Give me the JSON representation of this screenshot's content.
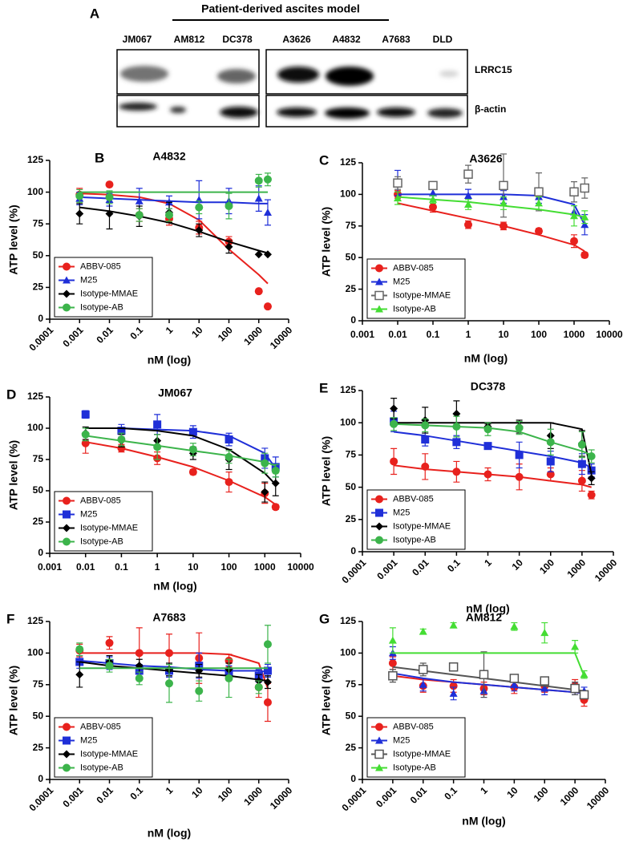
{
  "blot": {
    "panel": "A",
    "header": "Patient-derived ascites model",
    "lanes": [
      "JM067",
      "AM812",
      "DC378",
      "A3626",
      "A4832",
      "A7683",
      "DLD"
    ],
    "rows": [
      "LRRC15",
      "β-actin"
    ]
  },
  "chart_data": [
    {
      "type": "scatter",
      "panel": "B",
      "title": "A4832",
      "xlabel": "nM (log)",
      "ylabel": "ATP level (%)",
      "xscale": "log",
      "legend": "lower left",
      "xlim": [
        0.0001,
        10000
      ],
      "xticks": [
        0.0001,
        0.001,
        0.01,
        0.1,
        1,
        10,
        100,
        1000,
        10000
      ],
      "ylim": [
        0,
        125
      ],
      "yticks": [
        0,
        25,
        50,
        75,
        100,
        125
      ],
      "x": [
        0.001,
        0.01,
        0.1,
        1,
        10,
        100,
        1000,
        2000
      ],
      "series": [
        {
          "name": "ABBV-085",
          "color": "#e8211d",
          "marker": "circle",
          "values": [
            98,
            106,
            82,
            79,
            72,
            61,
            22,
            10
          ],
          "errors": [
            5,
            0,
            5,
            5,
            5,
            4,
            0,
            0
          ],
          "fit": [
            99,
            98,
            96,
            91,
            78,
            55,
            35,
            28
          ]
        },
        {
          "name": "M25",
          "color": "#1f2fd8",
          "marker": "triangle",
          "values": [
            95,
            94,
            93,
            92,
            94,
            93,
            95,
            84
          ],
          "errors": [
            5,
            5,
            10,
            5,
            15,
            10,
            10,
            10
          ],
          "fit": [
            96,
            95,
            94,
            93,
            92,
            92,
            91,
            91
          ]
        },
        {
          "name": "Isotype-MMAE",
          "color": "#000000",
          "marker": "diamond",
          "values": [
            83,
            83,
            81,
            84,
            70,
            57,
            51,
            51
          ],
          "errors": [
            8,
            12,
            8,
            8,
            5,
            5,
            0,
            0
          ],
          "fit": [
            88,
            85,
            81,
            76,
            69,
            61,
            54,
            52
          ]
        },
        {
          "name": "Isotype-AB",
          "color": "#3cb44b",
          "marker": "circle",
          "values": [
            97,
            96,
            82,
            82,
            88,
            89,
            109,
            110
          ],
          "errors": [
            5,
            5,
            5,
            5,
            5,
            10,
            5,
            5
          ],
          "fit": [
            100,
            100,
            100,
            100,
            100,
            100,
            100,
            100
          ]
        }
      ]
    },
    {
      "type": "scatter",
      "panel": "C",
      "title": "A3626",
      "xlabel": "nM (log)",
      "ylabel": "ATP level (%)",
      "xscale": "log",
      "legend": "lower left",
      "xlim": [
        0.001,
        10000
      ],
      "xticks": [
        0.001,
        0.01,
        0.1,
        1,
        10,
        100,
        1000,
        10000
      ],
      "ylim": [
        0,
        125
      ],
      "yticks": [
        0,
        25,
        50,
        75,
        100,
        125
      ],
      "x": [
        0.01,
        0.1,
        1,
        10,
        100,
        1000,
        2000
      ],
      "series": [
        {
          "name": "ABBV-085",
          "color": "#e8211d",
          "marker": "circle",
          "values": [
            100,
            90,
            76,
            75,
            71,
            63,
            52
          ],
          "errors": [
            3,
            4,
            3,
            3,
            2,
            5,
            2
          ],
          "fit": [
            93,
            87,
            81,
            75,
            68,
            60,
            55
          ]
        },
        {
          "name": "M25",
          "color": "#1f2fd8",
          "marker": "triangle",
          "values": [
            109,
            101,
            99,
            98,
            98,
            86,
            76
          ],
          "errors": [
            10,
            5,
            5,
            5,
            5,
            5,
            8
          ],
          "fit": [
            100,
            100,
            100,
            100,
            99,
            92,
            76
          ]
        },
        {
          "name": "Isotype-MMAE",
          "color": "#666666",
          "marker": "square-open",
          "values": [
            109,
            107,
            116,
            107,
            102,
            102,
            105
          ],
          "errors": [
            5,
            3,
            7,
            25,
            15,
            8,
            8
          ]
        },
        {
          "name": "Isotype-AB",
          "color": "#44dd33",
          "marker": "triangle",
          "values": [
            97,
            96,
            92,
            93,
            93,
            83,
            82
          ],
          "errors": [
            5,
            3,
            4,
            5,
            5,
            8,
            5
          ],
          "fit": [
            98,
            96,
            94,
            91,
            88,
            84,
            82
          ]
        }
      ]
    },
    {
      "type": "scatter",
      "panel": "D",
      "title": "JM067",
      "xlabel": "nM (log)",
      "ylabel": "ATP level (%)",
      "xscale": "log",
      "legend": "lower left",
      "xlim": [
        0.001,
        10000
      ],
      "xticks": [
        0.001,
        0.01,
        0.1,
        1,
        10,
        100,
        1000,
        10000
      ],
      "ylim": [
        0,
        125
      ],
      "yticks": [
        0,
        25,
        50,
        75,
        100,
        125
      ],
      "x": [
        0.01,
        0.1,
        1,
        10,
        100,
        1000,
        2000
      ],
      "series": [
        {
          "name": "ABBV-085",
          "color": "#e8211d",
          "marker": "circle",
          "values": [
            88,
            84,
            76,
            65,
            57,
            48,
            37
          ],
          "errors": [
            8,
            3,
            5,
            2,
            8,
            8,
            2
          ],
          "fit": [
            89,
            84,
            77,
            69,
            58,
            45,
            39
          ]
        },
        {
          "name": "M25",
          "color": "#1f2fd8",
          "marker": "square",
          "values": [
            111,
            98,
            103,
            97,
            91,
            76,
            69
          ],
          "errors": [
            3,
            5,
            8,
            5,
            5,
            8,
            8
          ],
          "fit": [
            100,
            100,
            99,
            98,
            94,
            80,
            68
          ]
        },
        {
          "name": "Isotype-MMAE",
          "color": "#000000",
          "marker": "diamond",
          "values": [
            96,
            90,
            90,
            80,
            75,
            49,
            56
          ],
          "errors": [
            5,
            5,
            5,
            5,
            8,
            8,
            10
          ],
          "fit": [
            100,
            100,
            98,
            94,
            83,
            64,
            55
          ]
        },
        {
          "name": "Isotype-AB",
          "color": "#3cb44b",
          "marker": "circle",
          "values": [
            95,
            91,
            85,
            83,
            77,
            72,
            66
          ],
          "errors": [
            5,
            5,
            10,
            5,
            5,
            8,
            5
          ],
          "fit": [
            94,
            90,
            86,
            82,
            78,
            73,
            70
          ]
        }
      ]
    },
    {
      "type": "scatter",
      "panel": "E",
      "title": "DC378",
      "xlabel": "nM (log)",
      "ylabel": "ATP level (%)",
      "xscale": "log",
      "legend": "lower left",
      "xlim": [
        0.0001,
        10000
      ],
      "xticks": [
        0.0001,
        0.001,
        0.01,
        0.1,
        1,
        10,
        100,
        1000,
        10000
      ],
      "ylim": [
        0,
        125
      ],
      "yticks": [
        0,
        25,
        50,
        75,
        100,
        125
      ],
      "x": [
        0.001,
        0.01,
        0.1,
        1,
        10,
        100,
        1000,
        2000
      ],
      "series": [
        {
          "name": "ABBV-085",
          "color": "#e8211d",
          "marker": "circle",
          "values": [
            70,
            66,
            62,
            60,
            58,
            60,
            55,
            44
          ],
          "errors": [
            10,
            10,
            8,
            5,
            10,
            5,
            8,
            3
          ],
          "fit": [
            67,
            64,
            62,
            60,
            58,
            55,
            52,
            50
          ]
        },
        {
          "name": "M25",
          "color": "#1f2fd8",
          "marker": "square",
          "values": [
            101,
            87,
            85,
            82,
            75,
            70,
            68,
            63
          ],
          "errors": [
            8,
            5,
            5,
            2,
            10,
            8,
            8,
            5
          ],
          "fit": [
            93,
            90,
            86,
            82,
            78,
            74,
            69,
            65
          ]
        },
        {
          "name": "Isotype-MMAE",
          "color": "#000000",
          "marker": "diamond",
          "values": [
            111,
            102,
            107,
            97,
            97,
            90,
            84,
            57
          ],
          "errors": [
            8,
            10,
            10,
            2,
            5,
            10,
            10,
            5
          ],
          "fit": [
            100,
            100,
            100,
            100,
            100,
            100,
            95,
            60
          ]
        },
        {
          "name": "Isotype-AB",
          "color": "#3cb44b",
          "marker": "circle",
          "values": [
            99,
            98,
            97,
            95,
            96,
            85,
            83,
            74
          ],
          "errors": [
            5,
            5,
            8,
            5,
            5,
            10,
            10,
            5
          ],
          "fit": [
            99,
            98,
            97,
            96,
            93,
            85,
            78,
            75
          ]
        }
      ]
    },
    {
      "type": "scatter",
      "panel": "F",
      "title": "A7683",
      "xlabel": "nM (log)",
      "ylabel": "ATP level (%)",
      "xscale": "log",
      "legend": "lower left",
      "xlim": [
        0.0001,
        10000
      ],
      "xticks": [
        0.0001,
        0.001,
        0.01,
        0.1,
        1,
        10,
        100,
        1000,
        10000
      ],
      "ylim": [
        0,
        125
      ],
      "yticks": [
        0,
        25,
        50,
        75,
        100,
        125
      ],
      "x": [
        0.001,
        0.01,
        0.1,
        1,
        10,
        100,
        1000,
        2000
      ],
      "series": [
        {
          "name": "ABBV-085",
          "color": "#e8211d",
          "marker": "circle",
          "values": [
            102,
            108,
            100,
            100,
            96,
            94,
            73,
            61
          ],
          "errors": [
            5,
            5,
            20,
            15,
            20,
            5,
            8,
            15
          ],
          "fit": [
            100,
            100,
            100,
            100,
            100,
            99,
            92,
            72
          ]
        },
        {
          "name": "M25",
          "color": "#1f2fd8",
          "marker": "square",
          "values": [
            93,
            92,
            86,
            86,
            90,
            85,
            82,
            86
          ],
          "errors": [
            5,
            5,
            5,
            5,
            10,
            5,
            5,
            5
          ],
          "fit": [
            94,
            92,
            90,
            89,
            87,
            86,
            86,
            85
          ]
        },
        {
          "name": "Isotype-MMAE",
          "color": "#000000",
          "marker": "diamond",
          "values": [
            83,
            93,
            90,
            87,
            86,
            87,
            78,
            77
          ],
          "errors": [
            10,
            5,
            5,
            5,
            5,
            5,
            5,
            5
          ],
          "fit": [
            93,
            90,
            88,
            86,
            84,
            82,
            79,
            78
          ]
        },
        {
          "name": "Isotype-AB",
          "color": "#3cb44b",
          "marker": "circle",
          "values": [
            103,
            90,
            80,
            76,
            70,
            80,
            73,
            107
          ],
          "errors": [
            5,
            5,
            5,
            15,
            8,
            15,
            5,
            15
          ],
          "fit": [
            88,
            88,
            88,
            88,
            88,
            88,
            88,
            88
          ]
        }
      ]
    },
    {
      "type": "scatter",
      "panel": "G",
      "title": "AM812",
      "xlabel": "nM (log)",
      "ylabel": "ATP level (%)",
      "xscale": "log",
      "legend": "lower left",
      "xlim": [
        0.0001,
        10000
      ],
      "xticks": [
        0.0001,
        0.001,
        0.01,
        0.1,
        1,
        10,
        100,
        1000,
        10000
      ],
      "ylim": [
        0,
        125
      ],
      "yticks": [
        0,
        25,
        50,
        75,
        100,
        125
      ],
      "x": [
        0.001,
        0.01,
        0.1,
        1,
        10,
        100,
        1000,
        2000
      ],
      "series": [
        {
          "name": "ABBV-085",
          "color": "#e8211d",
          "marker": "circle",
          "values": [
            92,
            74,
            74,
            72,
            73,
            74,
            74,
            63
          ],
          "errors": [
            5,
            5,
            5,
            5,
            5,
            5,
            5,
            5
          ],
          "fit": [
            82,
            79,
            77,
            75,
            73,
            71,
            69,
            68
          ]
        },
        {
          "name": "M25",
          "color": "#1f2fd8",
          "marker": "triangle",
          "values": [
            100,
            75,
            68,
            70,
            75,
            72,
            72,
            70
          ],
          "errors": [
            5,
            5,
            5,
            5,
            5,
            5,
            5,
            3
          ],
          "fit": [
            84,
            80,
            77,
            75,
            73,
            71,
            69,
            68
          ]
        },
        {
          "name": "Isotype-MMAE",
          "color": "#555555",
          "marker": "square-open",
          "values": [
            82,
            87,
            89,
            83,
            80,
            78,
            72,
            67
          ],
          "errors": [
            5,
            5,
            3,
            18,
            3,
            3,
            5,
            3
          ],
          "fit": [
            89,
            86,
            83,
            80,
            77,
            74,
            71,
            70
          ]
        },
        {
          "name": "Isotype-AB",
          "color": "#44dd33",
          "marker": "triangle",
          "values": [
            110,
            117,
            122,
            null,
            121,
            116,
            105,
            83
          ],
          "errors": [
            10,
            2,
            2,
            null,
            3,
            8,
            5,
            3
          ],
          "fit": [
            100,
            100,
            100,
            100,
            100,
            100,
            100,
            82
          ]
        }
      ]
    }
  ]
}
